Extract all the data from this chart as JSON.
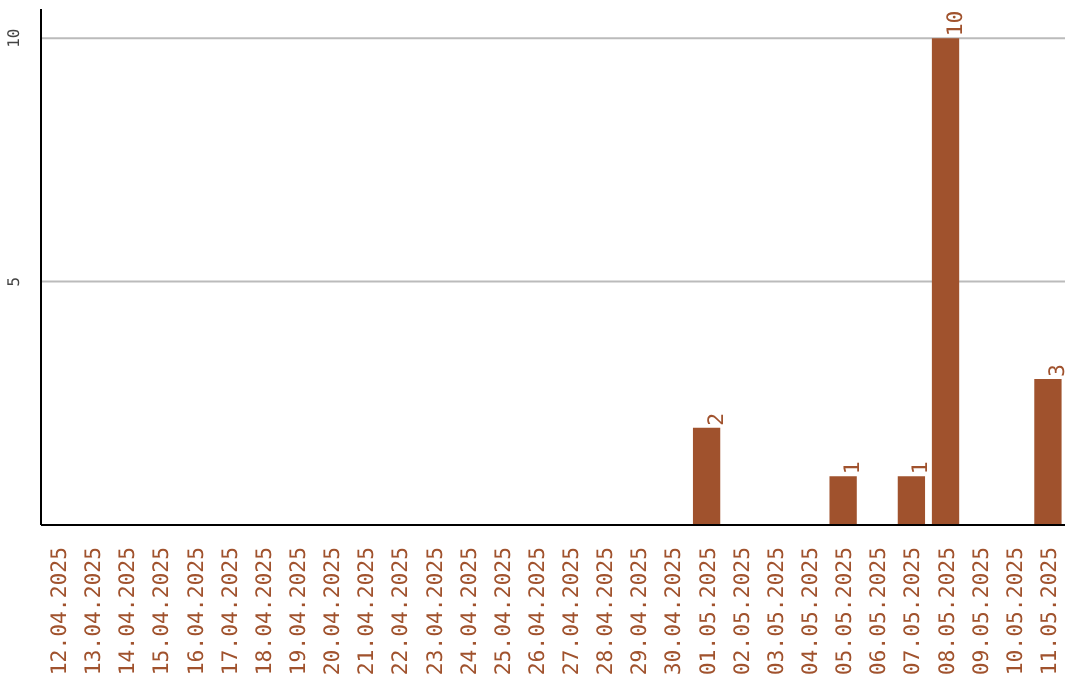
{
  "chart_data": {
    "type": "bar",
    "categories": [
      "12.04.2025",
      "13.04.2025",
      "14.04.2025",
      "15.04.2025",
      "16.04.2025",
      "17.04.2025",
      "18.04.2025",
      "19.04.2025",
      "20.04.2025",
      "21.04.2025",
      "22.04.2025",
      "23.04.2025",
      "24.04.2025",
      "25.04.2025",
      "26.04.2025",
      "27.04.2025",
      "28.04.2025",
      "29.04.2025",
      "30.04.2025",
      "01.05.2025",
      "02.05.2025",
      "03.05.2025",
      "04.05.2025",
      "05.05.2025",
      "06.05.2025",
      "07.05.2025",
      "08.05.2025",
      "09.05.2025",
      "10.05.2025",
      "11.05.2025"
    ],
    "values": [
      0,
      0,
      0,
      0,
      0,
      0,
      0,
      0,
      0,
      0,
      0,
      0,
      0,
      0,
      0,
      0,
      0,
      0,
      0,
      2,
      0,
      0,
      0,
      1,
      0,
      1,
      10,
      0,
      0,
      3
    ],
    "value_labels": [
      null,
      null,
      null,
      null,
      null,
      null,
      null,
      null,
      null,
      null,
      null,
      null,
      null,
      null,
      null,
      null,
      null,
      null,
      null,
      "2",
      null,
      null,
      null,
      "1",
      null,
      "1",
      "10",
      null,
      null,
      "3"
    ],
    "color": "#a0522d",
    "ylim": [
      0,
      10.6
    ],
    "yticks": [
      5,
      10
    ],
    "grid": "y"
  }
}
